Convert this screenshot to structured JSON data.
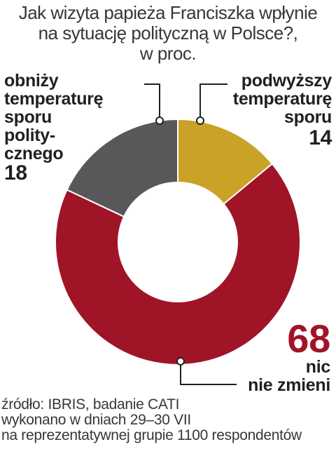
{
  "chart_data": {
    "type": "pie",
    "variant": "donut",
    "title": "Jak wizyta papieża Franciszka wpłynie na sytuację polityczną w Polsce?, w proc.",
    "title_lines": [
      "Jak wizyta papieża Franciszka wpłynie",
      "na sytuację polityczną w Polsce?,",
      "w proc."
    ],
    "slices": [
      {
        "label_lines": [
          "podwyższy",
          "temperaturę",
          "sporu"
        ],
        "value": 14,
        "color": "#c9a227"
      },
      {
        "label_lines": [
          "nic",
          "nie zmieni"
        ],
        "value": 68,
        "color": "#a01428"
      },
      {
        "label_lines": [
          "obniży",
          "temperaturę",
          "sporu",
          "polity-",
          "cznego"
        ],
        "value": 18,
        "color": "#58585a"
      }
    ]
  },
  "source_lines": [
    "źródło: IBRIS, badanie CATI",
    "wykonano w dniach 29–30 VII",
    "na reprezentatywnej grupie 1100 respondentów"
  ]
}
